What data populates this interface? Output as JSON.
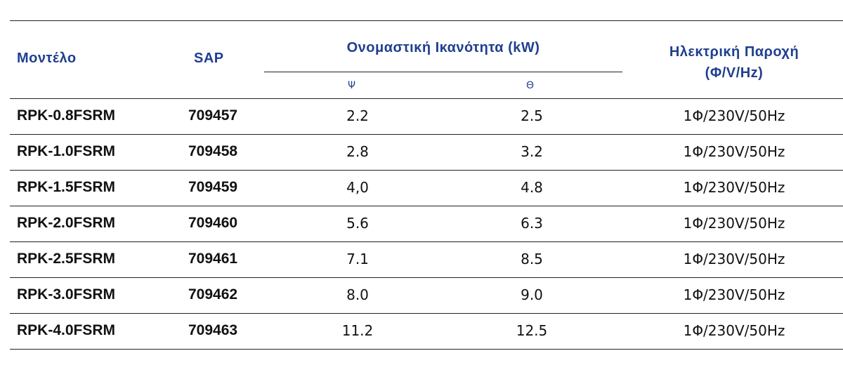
{
  "table": {
    "headers": {
      "model": "Μοντέλο",
      "sap": "SAP",
      "capacity": "Ονομαστική Ικανότητα (kW)",
      "power_line1": "Ηλεκτρική Παροχή",
      "power_line2": "(Φ/V/Hz)",
      "cooling": "Ψ",
      "heating": "Θ"
    },
    "rows": [
      {
        "model": "RPK-0.8FSRM",
        "sap": "709457",
        "cooling": "2.2",
        "heating": "2.5",
        "power": "1Φ/230V/50Hz"
      },
      {
        "model": "RPK-1.0FSRM",
        "sap": "709458",
        "cooling": "2.8",
        "heating": "3.2",
        "power": "1Φ/230V/50Hz"
      },
      {
        "model": "RPK-1.5FSRM",
        "sap": "709459",
        "cooling": "4,0",
        "heating": "4.8",
        "power": "1Φ/230V/50Hz"
      },
      {
        "model": "RPK-2.0FSRM",
        "sap": "709460",
        "cooling": "5.6",
        "heating": "6.3",
        "power": "1Φ/230V/50Hz"
      },
      {
        "model": "RPK-2.5FSRM",
        "sap": "709461",
        "cooling": "7.1",
        "heating": "8.5",
        "power": "1Φ/230V/50Hz"
      },
      {
        "model": "RPK-3.0FSRM",
        "sap": "709462",
        "cooling": "8.0",
        "heating": "9.0",
        "power": "1Φ/230V/50Hz"
      },
      {
        "model": "RPK-4.0FSRM",
        "sap": "709463",
        "cooling": "11.2",
        "heating": "12.5",
        "power": "1Φ/230V/50Hz"
      }
    ],
    "colors": {
      "header_text": "#1f3f8f",
      "body_text": "#111111",
      "rule": "#222222"
    }
  }
}
